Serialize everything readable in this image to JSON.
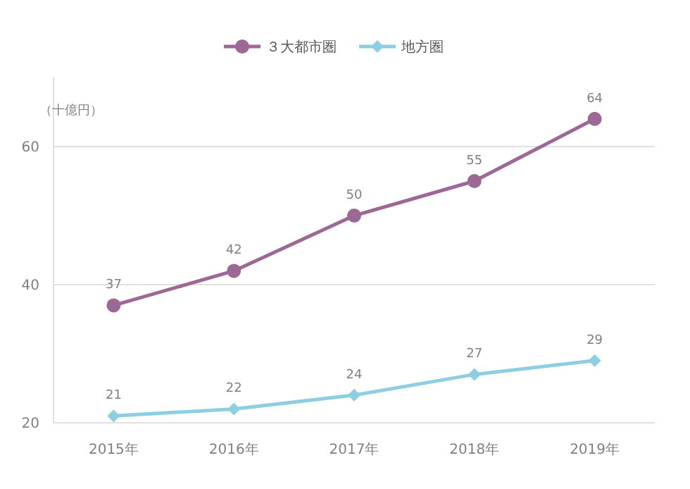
{
  "chart_data": {
    "type": "line",
    "ylabel": "（十億円）",
    "categories": [
      "2015年",
      "2016年",
      "2017年",
      "2018年",
      "2019年"
    ],
    "series": [
      {
        "name": "３大都市圏",
        "color": "#9e6896",
        "values": [
          37,
          42,
          50,
          55,
          64
        ],
        "marker": "circle"
      },
      {
        "name": "地方圏",
        "color": "#8ccfe2",
        "values": [
          21,
          22,
          24,
          27,
          29
        ],
        "marker": "diamond"
      }
    ],
    "ylim": [
      20,
      70
    ],
    "yticks": [
      20,
      40,
      60
    ],
    "grid": "y",
    "legend": "top",
    "data_labels": true
  }
}
